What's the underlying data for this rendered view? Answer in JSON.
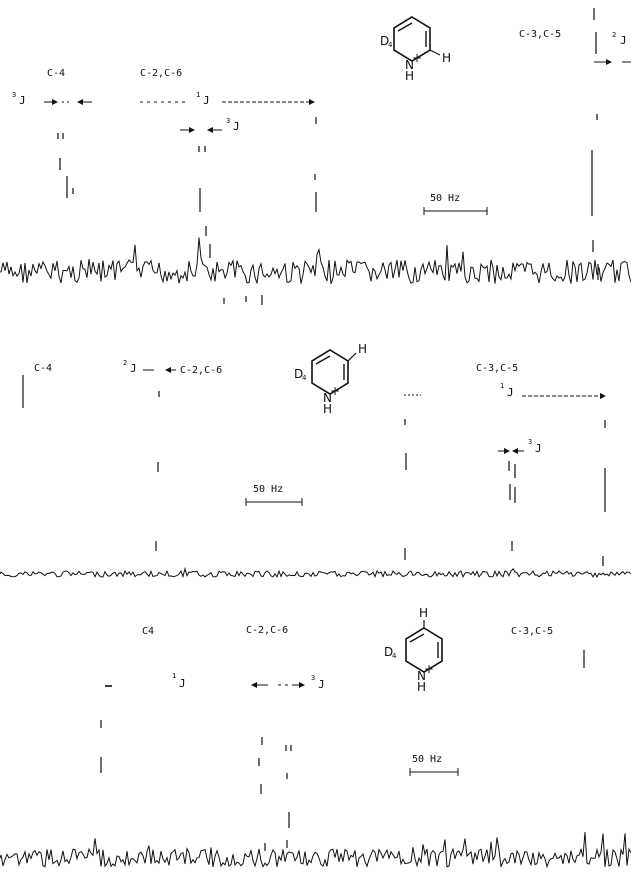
{
  "colors": {
    "ink": "#111111",
    "background": "#ffffff"
  },
  "chart_data": [
    {
      "type": "line",
      "panel": "top",
      "molecule": {
        "deuterium_label": "D",
        "deuterium_subscript": "4",
        "nitrogen_label": "N",
        "nitrogen_H": "H",
        "charge": "+",
        "proton_label": "H",
        "proton_position": "C-2"
      },
      "peak_labels": [
        "C-4",
        "C-2,C-6",
        "C-3,C-5"
      ],
      "coupling_labels": [
        {
          "sup": "3",
          "sym": "J"
        },
        {
          "sup": "1",
          "sym": "J"
        },
        {
          "sup": "3",
          "sym": "J"
        },
        {
          "sup": "2",
          "sym": "J"
        }
      ],
      "scale_bar": {
        "label": "50 Hz",
        "hz": 50
      }
    },
    {
      "type": "line",
      "panel": "middle",
      "molecule": {
        "deuterium_label": "D",
        "deuterium_subscript": "4",
        "nitrogen_label": "N",
        "nitrogen_H": "H",
        "charge": "+",
        "proton_label": "H",
        "proton_position": "C-3"
      },
      "peak_labels": [
        "C-4",
        "C-2,C-6",
        "C-3,C-5"
      ],
      "coupling_labels": [
        {
          "sup": "2",
          "sym": "J"
        },
        {
          "sup": "1",
          "sym": "J"
        },
        {
          "sup": "3",
          "sym": "J"
        }
      ],
      "scale_bar": {
        "label": "50 Hz",
        "hz": 50
      }
    },
    {
      "type": "line",
      "panel": "bottom",
      "molecule": {
        "deuterium_label": "D",
        "deuterium_subscript": "4",
        "nitrogen_label": "N",
        "nitrogen_H": "H",
        "charge": "+",
        "proton_label": "H",
        "proton_position": "C-4"
      },
      "peak_labels": [
        "C4",
        "C-2,C-6",
        "C-3,C-5"
      ],
      "coupling_labels": [
        {
          "sup": "1",
          "sym": "J"
        },
        {
          "sup": "3",
          "sym": "J"
        }
      ],
      "scale_bar": {
        "label": "50 Hz",
        "hz": 50
      }
    }
  ]
}
